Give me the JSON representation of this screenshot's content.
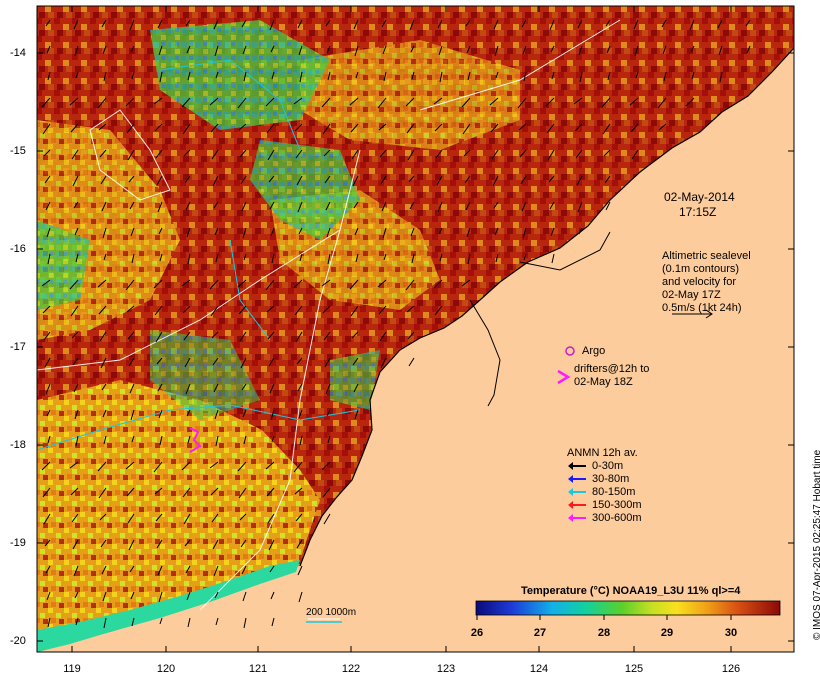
{
  "map": {
    "date": "02-May-2014",
    "time": "17:15Z",
    "y_ticks": [
      "-14",
      "-15",
      "-16",
      "-17",
      "-18",
      "-19",
      "-20"
    ],
    "x_ticks": [
      "119",
      "120",
      "121",
      "122",
      "123",
      "124",
      "125",
      "126"
    ],
    "colors": {
      "land": "#fdcc9c",
      "warm": "#a40f0a",
      "mid": "#e98f18",
      "cool": "#17c6a0",
      "cold": "#1320a8"
    }
  },
  "altimetry": {
    "line1": "Altimetric sealevel",
    "line2": "(0.1m contours)",
    "line3": "and velocity for",
    "line4": "02-May 17Z",
    "line5": "0.5m/s (1kt 24h)"
  },
  "argo": {
    "label": "Argo"
  },
  "drifters": {
    "line1": "drifters@12h to",
    "line2": "02-May 18Z"
  },
  "anmn": {
    "title": "ANMN 12h av.",
    "items": [
      {
        "label": "0-30m",
        "color": "#000000"
      },
      {
        "label": "30-80m",
        "color": "#1a1aff"
      },
      {
        "label": "80-150m",
        "color": "#18c8e0"
      },
      {
        "label": "150-300m",
        "color": "#ff1a1a"
      },
      {
        "label": "300-600m",
        "color": "#ff1aff"
      }
    ]
  },
  "isobath": {
    "label": "200  1000m"
  },
  "colorbar": {
    "title": "Temperature (°C) NOAA19_L3U 11% ql>=4",
    "ticks": [
      "26",
      "27",
      "28",
      "29",
      "30"
    ]
  },
  "credit": "© IMOS 07-Apr-2015 02:25:47 Hobart time"
}
